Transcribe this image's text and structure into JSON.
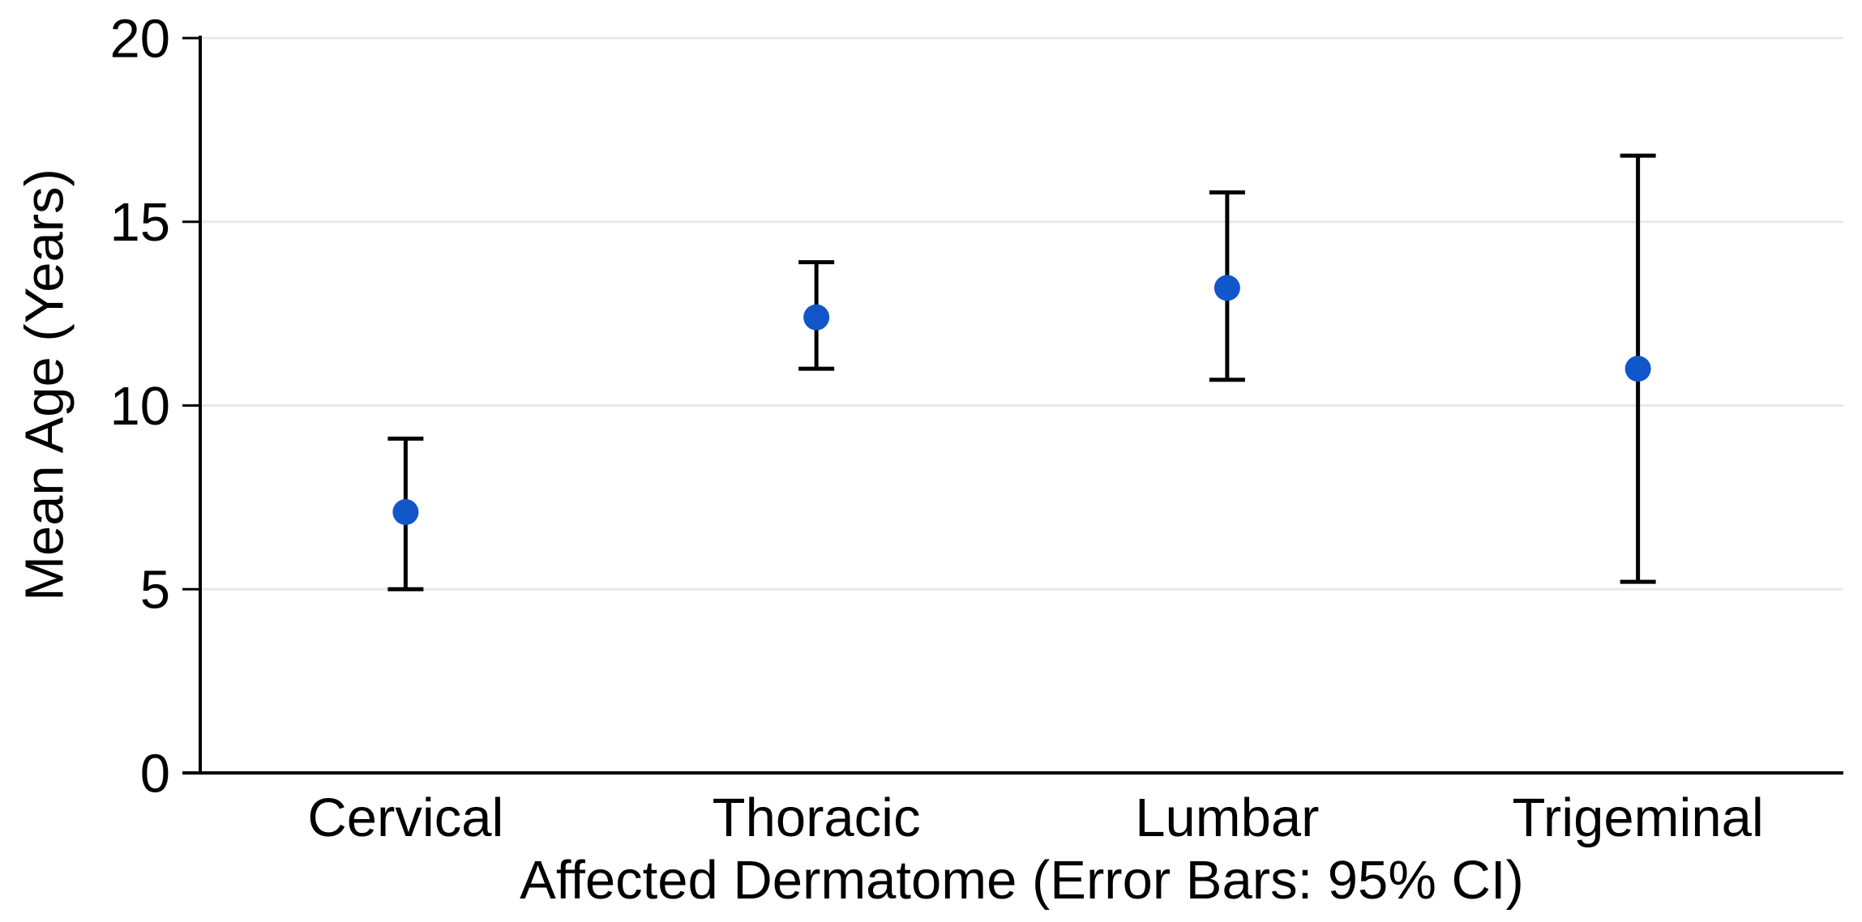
{
  "chart_data": {
    "type": "scatter",
    "subtype": "point-estimates-with-error-bars",
    "title": "",
    "xlabel": "Affected Dermatome (Error Bars: 95% CI)",
    "ylabel": "Mean Age (Years)",
    "categories": [
      "Cervical",
      "Thoracic",
      "Lumbar",
      "Trigeminal"
    ],
    "series": [
      {
        "name": "Mean Age",
        "values": [
          7.1,
          12.4,
          13.2,
          11.0
        ],
        "ci_low": [
          5.0,
          11.0,
          10.7,
          5.2
        ],
        "ci_high": [
          9.1,
          13.9,
          15.8,
          16.8
        ]
      }
    ],
    "ylim": [
      0,
      20
    ],
    "yticks": [
      0,
      5,
      10,
      15,
      20
    ],
    "grid": "horizontal",
    "legend_position": "none",
    "marker_color": "#1257c9",
    "errorbar_color": "#000000",
    "axis_color": "#000000",
    "gridline_color": "#e8e8e8",
    "background_color": "#ffffff",
    "tick_label_fontsize": 67,
    "axis_label_fontsize": 67
  }
}
